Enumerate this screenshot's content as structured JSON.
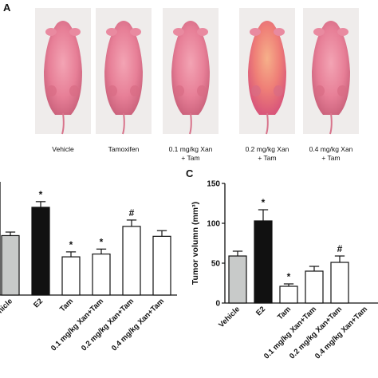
{
  "panel_a": {
    "letter": "A",
    "photos": [
      {
        "caption_lines": [
          "Vehicle"
        ]
      },
      {
        "caption_lines": [
          "Tamoxifen"
        ]
      },
      {
        "caption_lines": [
          "0.1 mg/kg Xan",
          "+ Tam"
        ]
      },
      {
        "caption_lines": [
          "0.2 mg/kg Xan",
          "+ Tam"
        ]
      },
      {
        "caption_lines": [
          "0.4 mg/kg Xan",
          "+ Tam"
        ]
      }
    ]
  },
  "chart_data": [
    {
      "type": "bar",
      "panel": "",
      "title": "",
      "xlabel": "",
      "ylabel": "",
      "categories": [
        "Vehicle",
        "E2",
        "Tam",
        "0.1 mg/kg Xan+Tam",
        "0.2 mg/kg Xan+Tam",
        "0.4 mg/kg Xan+Tam"
      ],
      "values": [
        0.84,
        1.24,
        0.54,
        0.58,
        0.97,
        0.83
      ],
      "errors": [
        0.05,
        0.08,
        0.07,
        0.07,
        0.09,
        0.08
      ],
      "annotations": [
        "",
        "*",
        "*",
        "*",
        "#",
        ""
      ],
      "fills": [
        "#c8cac9",
        "#111111",
        "#ffffff",
        "#ffffff",
        "#ffffff",
        "#ffffff"
      ],
      "ylim": [
        0,
        1.6
      ],
      "yticks": [],
      "grid": false,
      "legend": "none"
    },
    {
      "type": "bar",
      "panel": "C",
      "title": "",
      "xlabel": "",
      "ylabel": "Tumor volumn (mm³)",
      "categories": [
        "Vehicle",
        "E2",
        "Tam",
        "0.1 mg/kg Xan+Tam",
        "0.2 mg/kg Xan+Tam",
        "0.4 mg/kg Xan+Tam"
      ],
      "values": [
        59,
        103,
        21,
        40,
        51,
        0
      ],
      "errors": [
        6,
        14,
        3,
        6,
        8,
        0
      ],
      "annotations": [
        "",
        "*",
        "*",
        "",
        "#",
        ""
      ],
      "fills": [
        "#c8cac9",
        "#111111",
        "#ffffff",
        "#ffffff",
        "#ffffff",
        "#ffffff"
      ],
      "ylim": [
        0,
        150
      ],
      "yticks": [
        "0",
        "50",
        "100",
        "150"
      ],
      "grid": false,
      "legend": "none"
    }
  ],
  "colors": {
    "background": "#ffffff",
    "photo_bg": "#efeceb",
    "mouse_pink": "#e77f97",
    "axis": "#111111"
  }
}
